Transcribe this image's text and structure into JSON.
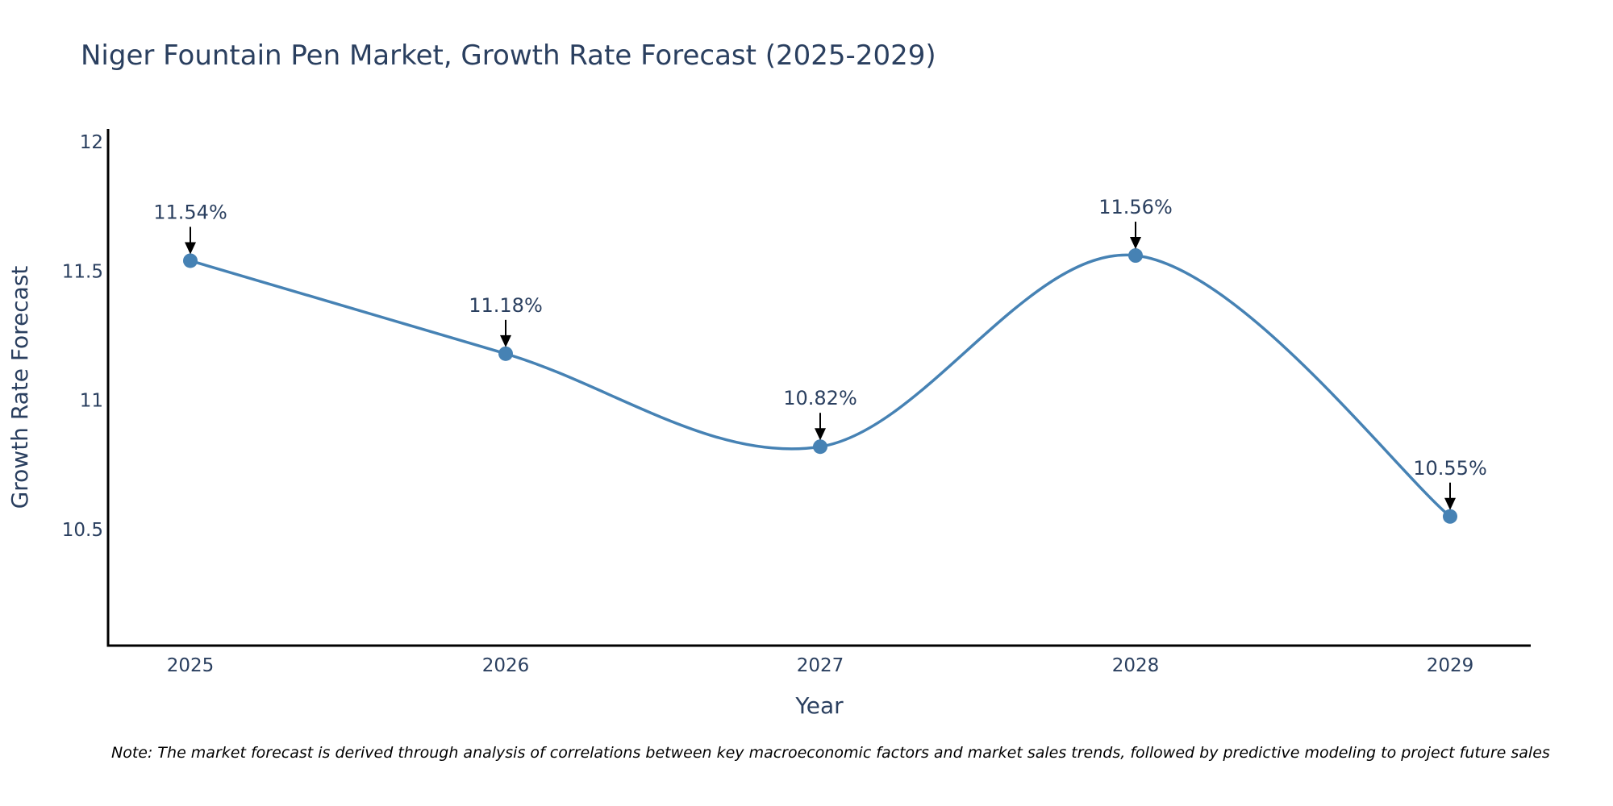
{
  "chart_data": {
    "type": "line",
    "title": "Niger Fountain Pen Market, Growth Rate Forecast (2025-2029)",
    "xlabel": "Year",
    "ylabel": "Growth Rate Forecast",
    "categories": [
      "2025",
      "2026",
      "2027",
      "2028",
      "2029"
    ],
    "values": [
      11.54,
      11.18,
      10.82,
      11.56,
      10.55
    ],
    "point_labels": [
      "11.54%",
      "11.18%",
      "10.82%",
      "11.56%",
      "10.55%"
    ],
    "yticks": [
      10.5,
      11,
      11.5,
      12
    ],
    "ytick_labels": [
      "10.5",
      "11",
      "11.5",
      "12"
    ],
    "ylim": [
      10.05,
      12.05
    ],
    "line_color": "#4682b4",
    "grid": false,
    "line_shape": "spline",
    "note": "Note: The market forecast is derived through analysis of correlations between key macroeconomic factors and market sales trends, followed by predictive modeling to project future sales"
  }
}
